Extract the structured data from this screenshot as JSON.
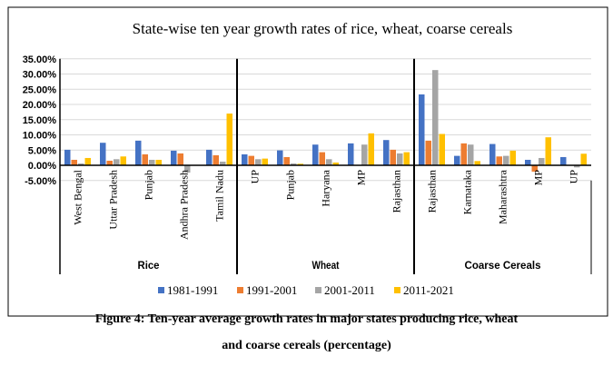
{
  "chart_data": {
    "type": "bar",
    "title": "State-wise ten year growth rates of rice, wheat, coarse cereals",
    "groups": [
      {
        "name": "Rice",
        "categories": [
          "West Bengal",
          "Uttar Pradesh",
          "Punjab",
          "Andhra Pradesh",
          "Tamil Nadu"
        ]
      },
      {
        "name": "Wheat",
        "categories": [
          "UP",
          "Punjab",
          "Haryana",
          "MP",
          "Rajasthan"
        ]
      },
      {
        "name": "Coarse Cereals",
        "categories": [
          "Rajasthan",
          "Karnataka",
          "Maharashtra",
          "MP",
          "UP"
        ]
      }
    ],
    "series": [
      {
        "name": "1981-1991",
        "color": "#4472C4",
        "values": [
          5.1,
          7.4,
          8.1,
          4.8,
          5.1,
          3.6,
          4.9,
          6.8,
          7.2,
          8.3,
          23.3,
          3.1,
          7.0,
          1.8,
          2.7
        ]
      },
      {
        "name": "1991-2001",
        "color": "#ED7D31",
        "values": [
          1.8,
          1.5,
          3.6,
          3.9,
          3.3,
          3.1,
          2.7,
          4.3,
          0.0,
          5.1,
          8.1,
          7.2,
          2.9,
          -2.1,
          0.0
        ]
      },
      {
        "name": "2001-2011",
        "color": "#A5A5A5",
        "values": [
          0.6,
          2.0,
          1.8,
          -2.4,
          1.2,
          2.0,
          0.6,
          2.0,
          6.8,
          3.9,
          31.3,
          6.8,
          3.1,
          2.4,
          -0.7
        ]
      },
      {
        "name": "2011-2021",
        "color": "#FFC000",
        "values": [
          2.4,
          2.9,
          1.8,
          0.0,
          17.0,
          2.2,
          0.5,
          0.9,
          10.5,
          4.3,
          10.3,
          1.4,
          4.8,
          9.2,
          3.8
        ]
      }
    ],
    "unit": "%",
    "ylim": [
      -5,
      35
    ],
    "yticks": [
      "-5.00%",
      "0.00%",
      "5.00%",
      "10.00%",
      "15.00%",
      "20.00%",
      "25.00%",
      "30.00%",
      "35.00%"
    ],
    "ytick_values": [
      -5,
      0,
      5,
      10,
      15,
      20,
      25,
      30,
      35
    ],
    "grid": true,
    "legend": "bottom"
  },
  "caption": {
    "line1": "Figure 4: Ten-year average growth rates in major states producing rice, wheat",
    "line2": "and coarse cereals (percentage)"
  }
}
